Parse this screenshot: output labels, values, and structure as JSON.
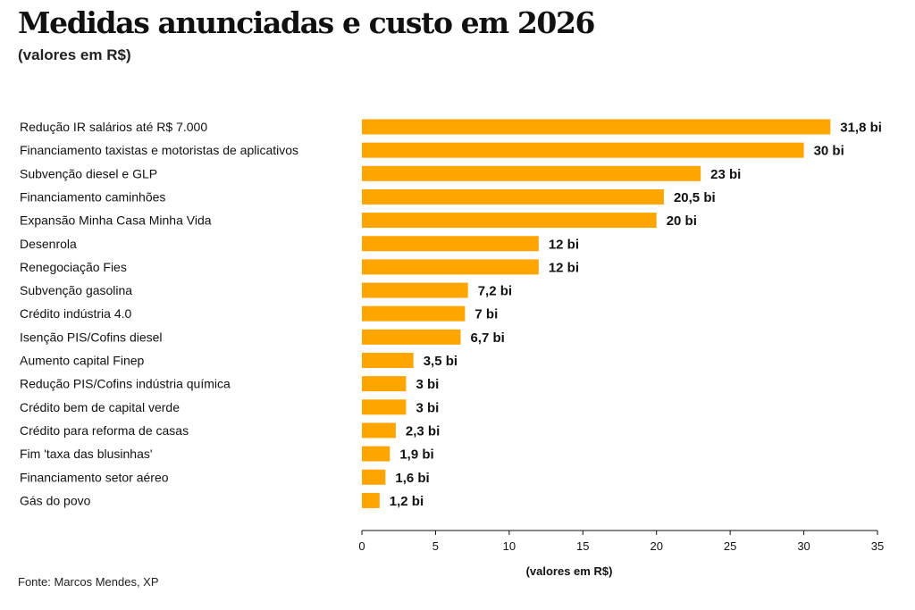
{
  "header": {
    "title": "Medidas anunciadas e custo em 2026",
    "subtitle": "(valores em R$)"
  },
  "footer": {
    "source": "Fonte: Marcos Mendes, XP"
  },
  "colors": {
    "bar": "#FFA500",
    "text": "#111111"
  },
  "chart_data": {
    "type": "bar",
    "orientation": "horizontal",
    "title": "Medidas anunciadas e custo em 2026",
    "subtitle": "(valores em R$)",
    "xlabel": "(valores em R$)",
    "ylabel": "",
    "xlim": [
      0,
      35
    ],
    "xticks": [
      0,
      5,
      10,
      15,
      20,
      25,
      30,
      35
    ],
    "grid": false,
    "legend": "none",
    "categories": [
      "Redução IR salários até R$ 7.000",
      "Financiamento taxistas e motoristas de aplicativos",
      "Subvenção diesel e GLP",
      "Financiamento caminhões",
      "Expansão Minha Casa Minha Vida",
      "Desenrola",
      "Renegociação Fies",
      "Subvenção gasolina",
      "Crédito indústria 4.0",
      "Isenção PIS/Cofins diesel",
      "Aumento capital Finep",
      "Redução PIS/Cofins indústria química",
      "Crédito bem de capital verde",
      "Crédito para reforma de casas",
      "Fim 'taxa das blusinhas'",
      "Financiamento setor aéreo",
      "Gás do povo"
    ],
    "values": [
      31.8,
      30,
      23,
      20.5,
      20,
      12,
      12,
      7.2,
      7,
      6.7,
      3.5,
      3,
      3,
      2.3,
      1.9,
      1.6,
      1.2
    ],
    "data_labels": [
      "31,8 bi",
      "30 bi",
      "23 bi",
      "20,5 bi",
      "20 bi",
      "12 bi",
      "12 bi",
      "7,2 bi",
      "7 bi",
      "6,7 bi",
      "3,5 bi",
      "3 bi",
      "3 bi",
      "2,3 bi",
      "1,9 bi",
      "1,6 bi",
      "1,2 bi"
    ]
  }
}
